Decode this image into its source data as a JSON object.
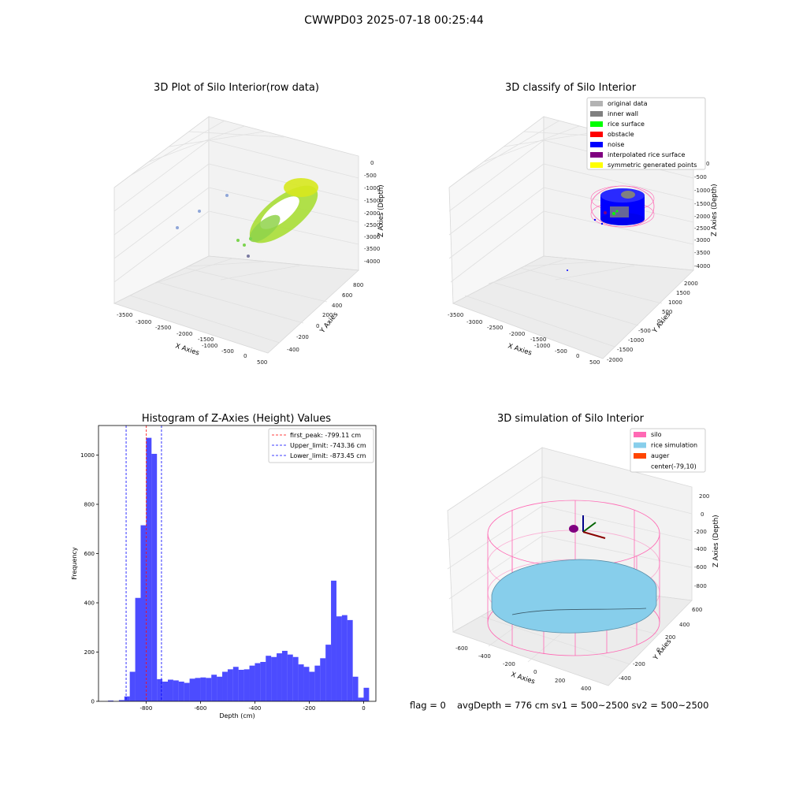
{
  "figure_title": "CWWPD03 2025-07-18 00:25:44",
  "panels": {
    "raw": {
      "title": "3D Plot of Silo Interior(row data)",
      "xlabel": "X Axies",
      "ylabel": "Y Axies",
      "zlabel": "Z Axies (Depth)",
      "xticks": [
        "-3500",
        "-3000",
        "-2500",
        "-2000",
        "-1500",
        "-1000",
        "-500",
        "0",
        "500"
      ],
      "yticks": [
        "800",
        "600",
        "400",
        "200",
        "0",
        "-200",
        "-400"
      ],
      "zticks": [
        "0",
        "-500",
        "-1000",
        "-1500",
        "-2000",
        "-2500",
        "-3000",
        "-3500",
        "-4000"
      ]
    },
    "classify": {
      "title": "3D classify of Silo Interior",
      "xlabel": "X Axies",
      "ylabel": "Y Axies",
      "zlabel": "Z Axies (Depth)",
      "xticks": [
        "-3500",
        "-3000",
        "-2500",
        "-2000",
        "-1500",
        "-1000",
        "-500",
        "0",
        "500"
      ],
      "yticks": [
        "2000",
        "1500",
        "1000",
        "500",
        "0",
        "-500",
        "-1000",
        "-1500",
        "-2000"
      ],
      "zticks": [
        "0",
        "-500",
        "-1000",
        "-1500",
        "-2000",
        "-2500",
        "-3000",
        "-3500",
        "-4000"
      ],
      "legend": [
        {
          "label": "original data",
          "color": "#b3b3b3"
        },
        {
          "label": "inner wall",
          "color": "#808080"
        },
        {
          "label": "rice surface",
          "color": "#00ff00"
        },
        {
          "label": "obstacle",
          "color": "#ff0000"
        },
        {
          "label": "noise",
          "color": "#0000ff"
        },
        {
          "label": "interpolated rice surface",
          "color": "#800080"
        },
        {
          "label": "symmetric generated points",
          "color": "#ffff00"
        }
      ]
    },
    "simulation": {
      "title": "3D simulation of Silo Interior",
      "xlabel": "X Axies",
      "ylabel": "Y Axies",
      "zlabel": "Z Axies (Depth)",
      "xticks": [
        "-600",
        "-400",
        "-200",
        "0",
        "200",
        "400"
      ],
      "yticks": [
        "600",
        "400",
        "200",
        "0",
        "-200",
        "-400"
      ],
      "zticks": [
        "200",
        "0",
        "-200",
        "-400",
        "-600",
        "-800"
      ],
      "legend": [
        {
          "label": "silo",
          "color": "#ff69b4"
        },
        {
          "label": "rice simulation",
          "color": "#87ceeb"
        },
        {
          "label": "auger",
          "color": "#ff4500"
        },
        {
          "label": "center(-79,10)",
          "color": ""
        }
      ]
    }
  },
  "footer": {
    "flag": "flag = 0",
    "stats": "avgDepth = 776 cm  sv1 = 500~2500  sv2 = 500~2500"
  },
  "chart_data": {
    "type": "bar",
    "title": "Histogram of Z-Axies (Height) Values",
    "xlabel": "Depth (cm)",
    "ylabel": "Frequency",
    "xlim": [
      -975,
      45
    ],
    "ylim": [
      0,
      1120
    ],
    "xticks": [
      -800,
      -600,
      -400,
      -200,
      0
    ],
    "yticks": [
      0,
      200,
      400,
      600,
      800,
      1000
    ],
    "bar_color": "#0000ff",
    "bin_width": 20,
    "bin_starts": [
      -940,
      -920,
      -900,
      -880,
      -860,
      -840,
      -820,
      -800,
      -780,
      -760,
      -740,
      -720,
      -700,
      -680,
      -660,
      -640,
      -620,
      -600,
      -580,
      -560,
      -540,
      -520,
      -500,
      -480,
      -460,
      -440,
      -420,
      -400,
      -380,
      -360,
      -340,
      -320,
      -300,
      -280,
      -260,
      -240,
      -220,
      -200,
      -180,
      -160,
      -140,
      -120,
      -100,
      -80,
      -60,
      -40,
      -20,
      0
    ],
    "counts": [
      3,
      0,
      5,
      20,
      120,
      420,
      715,
      1070,
      1005,
      90,
      80,
      88,
      85,
      80,
      75,
      92,
      95,
      97,
      95,
      108,
      100,
      120,
      130,
      140,
      128,
      130,
      145,
      155,
      160,
      185,
      180,
      195,
      205,
      190,
      180,
      150,
      140,
      120,
      145,
      175,
      230,
      490,
      345,
      350,
      330,
      100,
      15,
      55
    ],
    "lines": [
      {
        "label": "first_peak: -799.11 cm",
        "value": -799.11,
        "color": "#ff0000"
      },
      {
        "label": "Upper_limit: -743.36 cm",
        "value": -743.36,
        "color": "#0000ff"
      },
      {
        "label": "Lower_limit: -873.45 cm",
        "value": -873.45,
        "color": "#0000ff"
      }
    ]
  }
}
